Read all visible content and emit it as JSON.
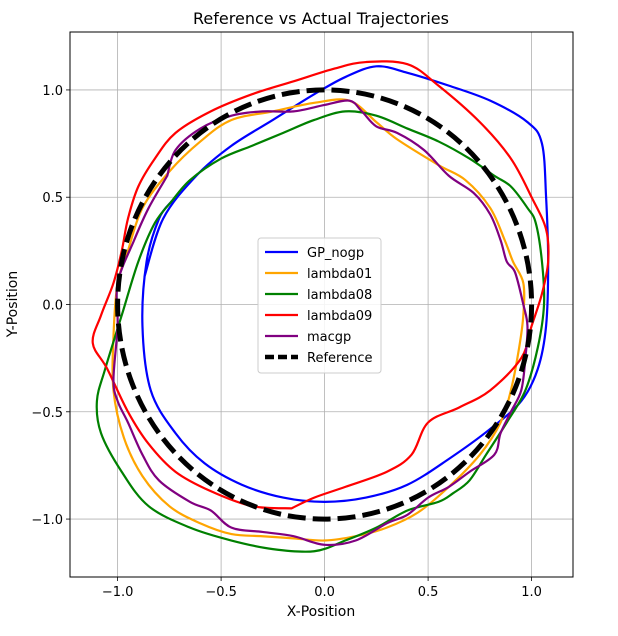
{
  "chart_data": {
    "type": "line",
    "title": "Reference vs Actual Trajectories",
    "xlabel": "X-Position",
    "ylabel": "Y-Position",
    "xlim": [
      -1.23,
      1.2
    ],
    "ylim": [
      -1.27,
      1.27
    ],
    "grid": true,
    "legend_position": "center",
    "xticks": [
      -1.0,
      -0.5,
      0.0,
      0.5,
      1.0
    ],
    "xtick_labels": [
      "−1.0",
      "−0.5",
      "0.0",
      "0.5",
      "1.0"
    ],
    "yticks": [
      -1.0,
      -0.5,
      0.0,
      0.5,
      1.0
    ],
    "ytick_labels": [
      "−1.0",
      "−0.5",
      "0.0",
      "0.5",
      "1.0"
    ],
    "series": [
      {
        "name": "GP_nogp",
        "color": "#0000ff",
        "dashed": false,
        "points": [
          [
            -0.87,
            0.13
          ],
          [
            -0.78,
            0.4
          ],
          [
            -0.62,
            0.6
          ],
          [
            -0.45,
            0.74
          ],
          [
            -0.25,
            0.86
          ],
          [
            -0.05,
            0.98
          ],
          [
            0.1,
            1.06
          ],
          [
            0.25,
            1.11
          ],
          [
            0.4,
            1.08
          ],
          [
            0.6,
            1.02
          ],
          [
            0.8,
            0.95
          ],
          [
            0.98,
            0.85
          ],
          [
            1.05,
            0.75
          ],
          [
            1.07,
            0.5
          ],
          [
            1.08,
            0.2
          ],
          [
            1.07,
            -0.1
          ],
          [
            1.03,
            -0.3
          ],
          [
            0.95,
            -0.45
          ],
          [
            0.8,
            -0.58
          ],
          [
            0.6,
            -0.72
          ],
          [
            0.4,
            -0.84
          ],
          [
            0.2,
            -0.9
          ],
          [
            0.0,
            -0.92
          ],
          [
            -0.2,
            -0.9
          ],
          [
            -0.4,
            -0.84
          ],
          [
            -0.58,
            -0.74
          ],
          [
            -0.72,
            -0.6
          ],
          [
            -0.84,
            -0.4
          ],
          [
            -0.88,
            -0.1
          ],
          [
            -0.86,
            0.2
          ],
          [
            -0.8,
            0.4
          ],
          [
            -0.74,
            0.48
          ]
        ]
      },
      {
        "name": "lambda01",
        "color": "#ffa500",
        "dashed": false,
        "points": [
          [
            -0.95,
            0.25
          ],
          [
            -0.88,
            0.45
          ],
          [
            -0.75,
            0.62
          ],
          [
            -0.6,
            0.76
          ],
          [
            -0.45,
            0.86
          ],
          [
            -0.25,
            0.9
          ],
          [
            -0.05,
            0.94
          ],
          [
            0.12,
            0.95
          ],
          [
            0.25,
            0.85
          ],
          [
            0.35,
            0.77
          ],
          [
            0.55,
            0.65
          ],
          [
            0.68,
            0.58
          ],
          [
            0.8,
            0.45
          ],
          [
            0.87,
            0.3
          ],
          [
            0.91,
            0.2
          ],
          [
            0.96,
            0.1
          ],
          [
            0.96,
            -0.05
          ],
          [
            0.94,
            -0.2
          ],
          [
            0.9,
            -0.4
          ],
          [
            0.85,
            -0.55
          ],
          [
            0.75,
            -0.7
          ],
          [
            0.6,
            -0.85
          ],
          [
            0.45,
            -0.97
          ],
          [
            0.3,
            -1.04
          ],
          [
            0.15,
            -1.08
          ],
          [
            0.0,
            -1.1
          ],
          [
            -0.15,
            -1.09
          ],
          [
            -0.3,
            -1.08
          ],
          [
            -0.45,
            -1.07
          ],
          [
            -0.6,
            -1.02
          ],
          [
            -0.75,
            -0.94
          ],
          [
            -0.88,
            -0.8
          ],
          [
            -0.97,
            -0.62
          ],
          [
            -1.02,
            -0.4
          ],
          [
            -1.02,
            -0.15
          ],
          [
            -1.0,
            0.1
          ],
          [
            -0.95,
            0.25
          ]
        ]
      },
      {
        "name": "lambda08",
        "color": "#008000",
        "dashed": false,
        "points": [
          [
            -0.74,
            0.48
          ],
          [
            -0.65,
            0.58
          ],
          [
            -0.5,
            0.68
          ],
          [
            -0.35,
            0.74
          ],
          [
            -0.2,
            0.8
          ],
          [
            -0.05,
            0.86
          ],
          [
            0.1,
            0.9
          ],
          [
            0.25,
            0.88
          ],
          [
            0.4,
            0.82
          ],
          [
            0.55,
            0.76
          ],
          [
            0.7,
            0.68
          ],
          [
            0.82,
            0.6
          ],
          [
            0.9,
            0.55
          ],
          [
            0.98,
            0.45
          ],
          [
            1.02,
            0.38
          ],
          [
            1.05,
            0.2
          ],
          [
            1.06,
            0.0
          ],
          [
            1.03,
            -0.2
          ],
          [
            0.97,
            -0.4
          ],
          [
            0.88,
            -0.55
          ],
          [
            0.78,
            -0.7
          ],
          [
            0.7,
            -0.82
          ],
          [
            0.62,
            -0.88
          ],
          [
            0.55,
            -0.92
          ],
          [
            0.4,
            -0.96
          ],
          [
            0.25,
            -1.04
          ],
          [
            0.1,
            -1.1
          ],
          [
            -0.05,
            -1.15
          ],
          [
            -0.25,
            -1.14
          ],
          [
            -0.45,
            -1.1
          ],
          [
            -0.65,
            -1.04
          ],
          [
            -0.85,
            -0.94
          ],
          [
            -0.98,
            -0.78
          ],
          [
            -1.08,
            -0.6
          ],
          [
            -1.1,
            -0.45
          ],
          [
            -1.06,
            -0.3
          ],
          [
            -0.98,
            -0.05
          ],
          [
            -0.9,
            0.2
          ],
          [
            -0.82,
            0.38
          ],
          [
            -0.74,
            0.48
          ]
        ]
      },
      {
        "name": "lambda09",
        "color": "#ff0000",
        "dashed": false,
        "points": [
          [
            -0.16,
            -0.95
          ],
          [
            -0.35,
            -0.94
          ],
          [
            -0.55,
            -0.87
          ],
          [
            -0.72,
            -0.78
          ],
          [
            -0.85,
            -0.65
          ],
          [
            -0.95,
            -0.5
          ],
          [
            -1.05,
            -0.3
          ],
          [
            -1.12,
            -0.18
          ],
          [
            -1.08,
            -0.05
          ],
          [
            -1.02,
            0.1
          ],
          [
            -0.98,
            0.25
          ],
          [
            -0.95,
            0.4
          ],
          [
            -0.9,
            0.55
          ],
          [
            -0.82,
            0.68
          ],
          [
            -0.72,
            0.8
          ],
          [
            -0.55,
            0.9
          ],
          [
            -0.35,
            0.98
          ],
          [
            -0.15,
            1.04
          ],
          [
            0.05,
            1.1
          ],
          [
            0.2,
            1.13
          ],
          [
            0.4,
            1.12
          ],
          [
            0.55,
            1.02
          ],
          [
            0.75,
            0.85
          ],
          [
            0.9,
            0.68
          ],
          [
            1.0,
            0.5
          ],
          [
            1.07,
            0.35
          ],
          [
            1.08,
            0.2
          ],
          [
            1.05,
            0.05
          ],
          [
            1.0,
            -0.1
          ],
          [
            0.95,
            -0.25
          ],
          [
            0.8,
            -0.4
          ],
          [
            0.65,
            -0.48
          ],
          [
            0.5,
            -0.55
          ],
          [
            0.42,
            -0.7
          ],
          [
            0.3,
            -0.78
          ],
          [
            0.1,
            -0.85
          ],
          [
            -0.05,
            -0.9
          ],
          [
            -0.16,
            -0.95
          ]
        ]
      },
      {
        "name": "macgp",
        "color": "#800080",
        "dashed": false,
        "points": [
          [
            -0.76,
            0.6
          ],
          [
            -0.72,
            0.72
          ],
          [
            -0.6,
            0.82
          ],
          [
            -0.45,
            0.88
          ],
          [
            -0.3,
            0.9
          ],
          [
            -0.15,
            0.9
          ],
          [
            0.0,
            0.93
          ],
          [
            0.12,
            0.95
          ],
          [
            0.18,
            0.9
          ],
          [
            0.25,
            0.83
          ],
          [
            0.35,
            0.8
          ],
          [
            0.48,
            0.72
          ],
          [
            0.6,
            0.6
          ],
          [
            0.72,
            0.52
          ],
          [
            0.8,
            0.42
          ],
          [
            0.85,
            0.3
          ],
          [
            0.88,
            0.2
          ],
          [
            0.92,
            0.15
          ],
          [
            0.96,
            0.0
          ],
          [
            0.98,
            -0.1
          ],
          [
            0.97,
            -0.25
          ],
          [
            0.95,
            -0.4
          ],
          [
            0.9,
            -0.5
          ],
          [
            0.85,
            -0.6
          ],
          [
            0.82,
            -0.7
          ],
          [
            0.7,
            -0.78
          ],
          [
            0.6,
            -0.85
          ],
          [
            0.5,
            -0.9
          ],
          [
            0.4,
            -0.98
          ],
          [
            0.3,
            -1.02
          ],
          [
            0.15,
            -1.1
          ],
          [
            0.0,
            -1.12
          ],
          [
            -0.15,
            -1.08
          ],
          [
            -0.3,
            -1.06
          ],
          [
            -0.45,
            -1.04
          ],
          [
            -0.55,
            -0.96
          ],
          [
            -0.65,
            -0.92
          ],
          [
            -0.8,
            -0.82
          ],
          [
            -0.88,
            -0.7
          ],
          [
            -0.95,
            -0.55
          ],
          [
            -1.0,
            -0.45
          ],
          [
            -1.02,
            -0.35
          ],
          [
            -1.0,
            -0.1
          ],
          [
            -1.0,
            0.1
          ],
          [
            -0.92,
            0.3
          ],
          [
            -0.85,
            0.45
          ],
          [
            -0.76,
            0.6
          ]
        ]
      },
      {
        "name": "Reference",
        "color": "#000000",
        "dashed": true,
        "circle": {
          "cx": 0,
          "cy": 0,
          "r": 1
        }
      }
    ]
  }
}
